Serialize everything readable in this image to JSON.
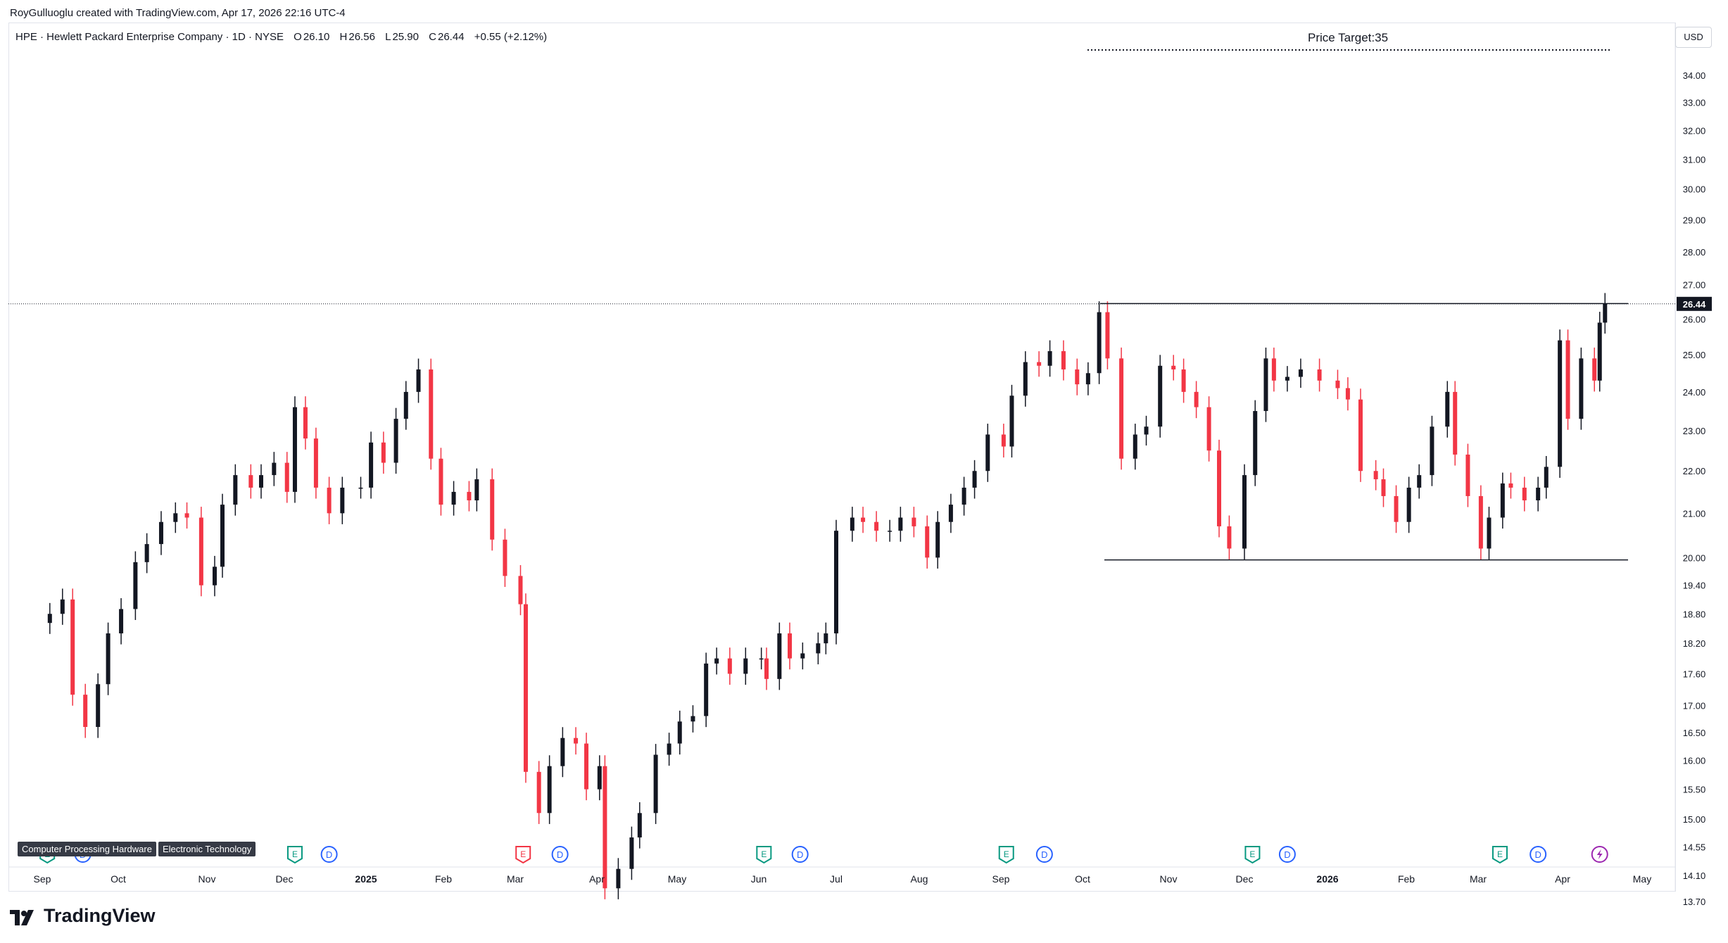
{
  "header": {
    "attribution": "RoyGulluoglu created with TradingView.com, Apr 17, 2026 22:16 UTC-4"
  },
  "symbol": {
    "name": "HPE · Hewlett Packard Enterprise Company · 1D · NYSE",
    "open_label": "O",
    "open": "26.10",
    "high_label": "H",
    "high": "26.56",
    "low_label": "L",
    "low": "25.90",
    "close_label": "C",
    "close": "26.44",
    "change": "+0.55 (+2.12%)"
  },
  "currency": "USD",
  "annotation": {
    "text": "Price Target:35"
  },
  "tags": [
    "Computer Processing Hardware",
    "Electronic Technology"
  ],
  "brand": {
    "name": "TradingView"
  },
  "colors": {
    "up": "#131722",
    "down": "#f23645",
    "earnings": "#089981",
    "dividend": "#2962ff",
    "split": "#9c27b0",
    "last_price_bg": "#131722"
  },
  "chart_data": {
    "type": "candlestick",
    "title": "HPE · Hewlett Packard Enterprise Company · 1D · NYSE",
    "x_ticks": [
      "Sep",
      "Oct",
      "Nov",
      "Dec",
      "2025",
      "Feb",
      "Mar",
      "Apr",
      "May",
      "Jun",
      "Jul",
      "Aug",
      "Sep",
      "Oct",
      "Nov",
      "Dec",
      "2026",
      "Feb",
      "Mar",
      "Apr",
      "May"
    ],
    "y_ticks": [
      "34.00",
      "33.00",
      "32.00",
      "31.00",
      "30.00",
      "29.00",
      "28.00",
      "27.00",
      "26.00",
      "25.00",
      "24.00",
      "23.00",
      "22.00",
      "21.00",
      "20.00",
      "19.40",
      "18.80",
      "18.20",
      "17.60",
      "17.00",
      "16.50",
      "16.00",
      "15.50",
      "15.00",
      "14.55",
      "14.10",
      "13.70"
    ],
    "y_scale": "log",
    "ylim": [
      13.6,
      35.5
    ],
    "last_price": "26.44",
    "price_target": 35,
    "resistance": 26.45,
    "support": 19.95,
    "series": [
      {
        "d": "2024-09-04",
        "c": 18.8
      },
      {
        "d": "2024-09-09",
        "c": 19.1
      },
      {
        "d": "2024-09-13",
        "c": 17.2
      },
      {
        "d": "2024-09-18",
        "c": 16.6
      },
      {
        "d": "2024-09-23",
        "c": 17.4
      },
      {
        "d": "2024-09-27",
        "c": 18.4
      },
      {
        "d": "2024-10-02",
        "c": 18.9
      },
      {
        "d": "2024-10-07",
        "c": 19.9
      },
      {
        "d": "2024-10-11",
        "c": 20.3
      },
      {
        "d": "2024-10-16",
        "c": 20.8
      },
      {
        "d": "2024-10-21",
        "c": 21.0
      },
      {
        "d": "2024-10-25",
        "c": 20.9
      },
      {
        "d": "2024-10-30",
        "c": 19.4
      },
      {
        "d": "2024-11-04",
        "c": 19.8
      },
      {
        "d": "2024-11-07",
        "c": 21.2
      },
      {
        "d": "2024-11-12",
        "c": 21.9
      },
      {
        "d": "2024-11-18",
        "c": 21.6
      },
      {
        "d": "2024-11-22",
        "c": 21.9
      },
      {
        "d": "2024-11-27",
        "c": 22.2
      },
      {
        "d": "2024-12-02",
        "c": 21.5
      },
      {
        "d": "2024-12-05",
        "c": 23.6
      },
      {
        "d": "2024-12-09",
        "c": 22.8
      },
      {
        "d": "2024-12-13",
        "c": 21.6
      },
      {
        "d": "2024-12-18",
        "c": 21.0
      },
      {
        "d": "2024-12-23",
        "c": 21.6
      },
      {
        "d": "2024-12-30",
        "c": 21.6
      },
      {
        "d": "2025-01-03",
        "c": 22.7
      },
      {
        "d": "2025-01-08",
        "c": 22.2
      },
      {
        "d": "2025-01-13",
        "c": 23.3
      },
      {
        "d": "2025-01-17",
        "c": 24.0
      },
      {
        "d": "2025-01-22",
        "c": 24.6
      },
      {
        "d": "2025-01-27",
        "c": 22.3
      },
      {
        "d": "2025-01-31",
        "c": 21.2
      },
      {
        "d": "2025-02-05",
        "c": 21.5
      },
      {
        "d": "2025-02-11",
        "c": 21.3
      },
      {
        "d": "2025-02-14",
        "c": 21.8
      },
      {
        "d": "2025-02-20",
        "c": 20.4
      },
      {
        "d": "2025-02-25",
        "c": 19.6
      },
      {
        "d": "2025-03-03",
        "c": 19.0
      },
      {
        "d": "2025-03-05",
        "c": 15.8
      },
      {
        "d": "2025-03-10",
        "c": 15.1
      },
      {
        "d": "2025-03-14",
        "c": 15.9
      },
      {
        "d": "2025-03-19",
        "c": 16.4
      },
      {
        "d": "2025-03-24",
        "c": 16.3
      },
      {
        "d": "2025-03-28",
        "c": 15.5
      },
      {
        "d": "2025-04-02",
        "c": 15.9
      },
      {
        "d": "2025-04-04",
        "c": 13.9
      },
      {
        "d": "2025-04-09",
        "c": 14.2
      },
      {
        "d": "2025-04-14",
        "c": 14.7
      },
      {
        "d": "2025-04-17",
        "c": 15.1
      },
      {
        "d": "2025-04-23",
        "c": 16.1
      },
      {
        "d": "2025-04-28",
        "c": 16.3
      },
      {
        "d": "2025-05-02",
        "c": 16.7
      },
      {
        "d": "2025-05-07",
        "c": 16.8
      },
      {
        "d": "2025-05-12",
        "c": 17.8
      },
      {
        "d": "2025-05-16",
        "c": 17.9
      },
      {
        "d": "2025-05-21",
        "c": 17.6
      },
      {
        "d": "2025-05-27",
        "c": 17.9
      },
      {
        "d": "2025-06-02",
        "c": 17.9
      },
      {
        "d": "2025-06-04",
        "c": 17.5
      },
      {
        "d": "2025-06-09",
        "c": 18.4
      },
      {
        "d": "2025-06-13",
        "c": 17.9
      },
      {
        "d": "2025-06-18",
        "c": 18.0
      },
      {
        "d": "2025-06-24",
        "c": 18.2
      },
      {
        "d": "2025-06-27",
        "c": 18.4
      },
      {
        "d": "2025-07-01",
        "c": 20.6
      },
      {
        "d": "2025-07-07",
        "c": 20.9
      },
      {
        "d": "2025-07-11",
        "c": 20.8
      },
      {
        "d": "2025-07-16",
        "c": 20.6
      },
      {
        "d": "2025-07-21",
        "c": 20.6
      },
      {
        "d": "2025-07-25",
        "c": 20.9
      },
      {
        "d": "2025-07-30",
        "c": 20.7
      },
      {
        "d": "2025-08-04",
        "c": 20.0
      },
      {
        "d": "2025-08-08",
        "c": 20.8
      },
      {
        "d": "2025-08-13",
        "c": 21.2
      },
      {
        "d": "2025-08-18",
        "c": 21.6
      },
      {
        "d": "2025-08-22",
        "c": 22.0
      },
      {
        "d": "2025-08-27",
        "c": 22.9
      },
      {
        "d": "2025-09-02",
        "c": 22.6
      },
      {
        "d": "2025-09-05",
        "c": 23.9
      },
      {
        "d": "2025-09-10",
        "c": 24.8
      },
      {
        "d": "2025-09-15",
        "c": 24.7
      },
      {
        "d": "2025-09-19",
        "c": 25.1
      },
      {
        "d": "2025-09-24",
        "c": 24.6
      },
      {
        "d": "2025-09-29",
        "c": 24.2
      },
      {
        "d": "2025-10-03",
        "c": 24.5
      },
      {
        "d": "2025-10-07",
        "c": 26.2
      },
      {
        "d": "2025-10-10",
        "c": 24.9
      },
      {
        "d": "2025-10-15",
        "c": 22.3
      },
      {
        "d": "2025-10-20",
        "c": 22.9
      },
      {
        "d": "2025-10-24",
        "c": 23.1
      },
      {
        "d": "2025-10-29",
        "c": 24.7
      },
      {
        "d": "2025-11-03",
        "c": 24.6
      },
      {
        "d": "2025-11-07",
        "c": 24.0
      },
      {
        "d": "2025-11-12",
        "c": 23.6
      },
      {
        "d": "2025-11-17",
        "c": 22.5
      },
      {
        "d": "2025-11-21",
        "c": 20.7
      },
      {
        "d": "2025-11-25",
        "c": 20.2
      },
      {
        "d": "2025-12-01",
        "c": 21.9
      },
      {
        "d": "2025-12-05",
        "c": 23.5
      },
      {
        "d": "2025-12-09",
        "c": 24.9
      },
      {
        "d": "2025-12-12",
        "c": 24.3
      },
      {
        "d": "2025-12-17",
        "c": 24.4
      },
      {
        "d": "2025-12-22",
        "c": 24.6
      },
      {
        "d": "2025-12-29",
        "c": 24.3
      },
      {
        "d": "2026-01-05",
        "c": 24.1
      },
      {
        "d": "2026-01-09",
        "c": 23.8
      },
      {
        "d": "2026-01-14",
        "c": 22.0
      },
      {
        "d": "2026-01-20",
        "c": 21.8
      },
      {
        "d": "2026-01-23",
        "c": 21.4
      },
      {
        "d": "2026-01-28",
        "c": 20.8
      },
      {
        "d": "2026-02-02",
        "c": 21.6
      },
      {
        "d": "2026-02-06",
        "c": 21.9
      },
      {
        "d": "2026-02-11",
        "c": 23.1
      },
      {
        "d": "2026-02-17",
        "c": 24.0
      },
      {
        "d": "2026-02-20",
        "c": 22.4
      },
      {
        "d": "2026-02-25",
        "c": 21.4
      },
      {
        "d": "2026-03-02",
        "c": 20.2
      },
      {
        "d": "2026-03-05",
        "c": 20.9
      },
      {
        "d": "2026-03-10",
        "c": 21.7
      },
      {
        "d": "2026-03-13",
        "c": 21.6
      },
      {
        "d": "2026-03-18",
        "c": 21.3
      },
      {
        "d": "2026-03-23",
        "c": 21.6
      },
      {
        "d": "2026-03-26",
        "c": 22.1
      },
      {
        "d": "2026-03-31",
        "c": 25.4
      },
      {
        "d": "2026-04-03",
        "c": 23.3
      },
      {
        "d": "2026-04-08",
        "c": 24.9
      },
      {
        "d": "2026-04-13",
        "c": 24.3
      },
      {
        "d": "2026-04-15",
        "c": 25.9
      },
      {
        "d": "2026-04-17",
        "c": 26.44
      }
    ],
    "events": [
      {
        "type": "E",
        "d": "2024-09-03"
      },
      {
        "type": "D",
        "d": "2024-09-17"
      },
      {
        "type": "E",
        "d": "2024-12-05"
      },
      {
        "type": "D",
        "d": "2024-12-18"
      },
      {
        "type": "E",
        "d": "2025-03-04"
      },
      {
        "type": "D",
        "d": "2025-03-18"
      },
      {
        "type": "E",
        "d": "2025-06-03"
      },
      {
        "type": "D",
        "d": "2025-06-17"
      },
      {
        "type": "E",
        "d": "2025-09-03"
      },
      {
        "type": "D",
        "d": "2025-09-17"
      },
      {
        "type": "E",
        "d": "2025-12-04"
      },
      {
        "type": "D",
        "d": "2025-12-17"
      },
      {
        "type": "E",
        "d": "2026-03-09"
      },
      {
        "type": "D",
        "d": "2026-03-23"
      },
      {
        "type": "S",
        "d": "2026-04-15"
      }
    ]
  }
}
